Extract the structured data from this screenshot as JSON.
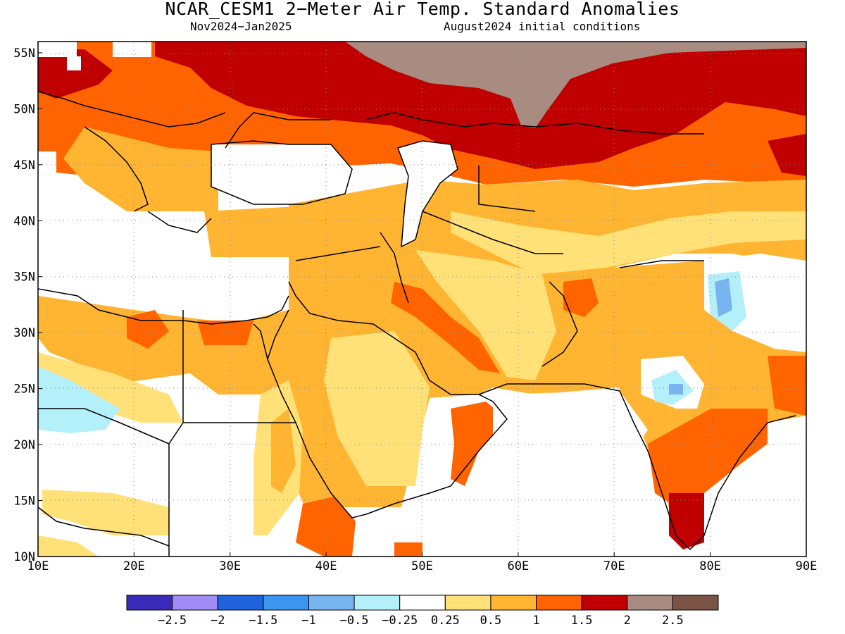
{
  "title": "NCAR_CESM1 2−Meter Air Temp. Standard Anomalies",
  "subtitle_left": "Nov2024−Jan2025",
  "subtitle_right": "August2024 initial conditions",
  "map": {
    "lon_range": [
      10,
      90
    ],
    "lat_range": [
      10,
      56
    ],
    "lon_ticks": [
      "10E",
      "20E",
      "30E",
      "40E",
      "50E",
      "60E",
      "70E",
      "80E",
      "90E"
    ],
    "lat_ticks": [
      "55N",
      "50N",
      "45N",
      "40N",
      "35N",
      "30N",
      "25N",
      "20N",
      "15N",
      "10N"
    ]
  },
  "colorbar": {
    "colors": [
      "#3a2bb8",
      "#a08cf5",
      "#1f64dc",
      "#3c96f0",
      "#78b4f0",
      "#b4f0fa",
      "#ffffff",
      "#ffe178",
      "#ffb432",
      "#ff6400",
      "#c00000",
      "#a88c82",
      "#7b5445"
    ],
    "labels": [
      "−2.5",
      "−2",
      "−1.5",
      "−1",
      "−0.5",
      "−0.25",
      "0.25",
      "0.5",
      "1",
      "1.5",
      "2",
      "2.5"
    ]
  }
}
